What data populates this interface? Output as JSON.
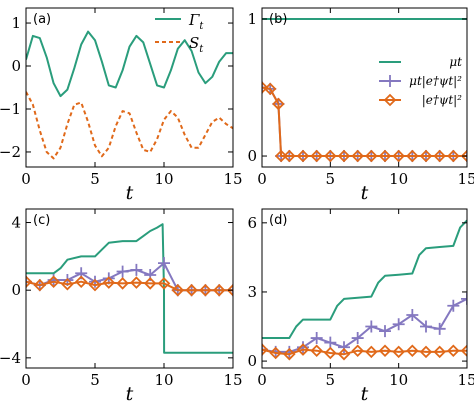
{
  "colors": {
    "green": "#2a9d7c",
    "orange": "#e0691a",
    "purple": "#8478c0"
  },
  "chart_data": [
    {
      "panel": "(a)",
      "type": "line",
      "xlabel": "t",
      "xlim": [
        0,
        15
      ],
      "ylim": [
        -2.35,
        1.35
      ],
      "xticks": [
        0,
        5,
        10,
        15
      ],
      "yticks": [
        -2,
        -1,
        0,
        1
      ],
      "legend_position": "top-right",
      "series": [
        {
          "name": "Γt",
          "color": "green",
          "style": "solid",
          "x": [
            0,
            0.5,
            1,
            1.5,
            2,
            2.5,
            3,
            3.5,
            4,
            4.5,
            5,
            5.5,
            6,
            6.5,
            7,
            7.5,
            8,
            8.5,
            9,
            9.5,
            10,
            10.5,
            11,
            11.5,
            12,
            12.5,
            13,
            13.5,
            14,
            14.5,
            15
          ],
          "y": [
            0.15,
            0.7,
            0.65,
            0.2,
            -0.4,
            -0.7,
            -0.55,
            -0.05,
            0.5,
            0.8,
            0.6,
            0.1,
            -0.45,
            -0.5,
            -0.1,
            0.45,
            0.7,
            0.55,
            0.05,
            -0.45,
            -0.5,
            -0.1,
            0.4,
            0.6,
            0.35,
            -0.15,
            -0.4,
            -0.25,
            0.1,
            0.3,
            0.3
          ]
        },
        {
          "name": "St",
          "color": "orange",
          "style": "dashed",
          "x": [
            0,
            0.5,
            1,
            1.5,
            2,
            2.5,
            3,
            3.5,
            4,
            4.5,
            5,
            5.5,
            6,
            6.5,
            7,
            7.5,
            8,
            8.5,
            9,
            9.5,
            10,
            10.5,
            11,
            11.5,
            12,
            12.5,
            13,
            13.5,
            14,
            14.5,
            15
          ],
          "y": [
            -0.6,
            -0.9,
            -1.5,
            -2.0,
            -2.15,
            -1.9,
            -1.35,
            -0.9,
            -0.85,
            -1.3,
            -1.85,
            -2.1,
            -1.9,
            -1.4,
            -1.05,
            -1.1,
            -1.55,
            -1.95,
            -2.0,
            -1.7,
            -1.25,
            -1.05,
            -1.2,
            -1.6,
            -1.9,
            -1.9,
            -1.6,
            -1.3,
            -1.2,
            -1.35,
            -1.45
          ]
        }
      ]
    },
    {
      "panel": "(b)",
      "type": "line",
      "xlabel": "t",
      "xlim": [
        0,
        15
      ],
      "ylim": [
        -0.08,
        1.08
      ],
      "xticks": [
        0,
        5,
        10,
        15
      ],
      "yticks": [
        0,
        1
      ],
      "legend_position": "right",
      "series": [
        {
          "name": "μt",
          "color": "green",
          "marker": "none",
          "x": [
            0,
            15
          ],
          "y": [
            1,
            1
          ]
        },
        {
          "name": "μt|e†ψt|²",
          "color": "purple",
          "marker": "plus",
          "x": [
            0,
            0.6,
            1.2,
            1.4,
            2,
            3,
            4,
            5,
            6,
            7,
            8,
            9,
            10,
            11,
            12,
            13,
            14,
            15
          ],
          "y": [
            0.5,
            0.49,
            0.38,
            0,
            0,
            0,
            0,
            0,
            0,
            0,
            0,
            0,
            0,
            0,
            0,
            0,
            0,
            0
          ]
        },
        {
          "name": "|e†ψt|²",
          "color": "orange",
          "marker": "diamond",
          "x": [
            0,
            0.6,
            1.2,
            1.4,
            2,
            3,
            4,
            5,
            6,
            7,
            8,
            9,
            10,
            11,
            12,
            13,
            14,
            15
          ],
          "y": [
            0.5,
            0.49,
            0.38,
            0,
            0,
            0,
            0,
            0,
            0,
            0,
            0,
            0,
            0,
            0,
            0,
            0,
            0,
            0
          ]
        }
      ]
    },
    {
      "panel": "(c)",
      "type": "line",
      "xlabel": "t",
      "xlim": [
        0,
        15
      ],
      "ylim": [
        -4.6,
        4.8
      ],
      "xticks": [
        0,
        5,
        10,
        15
      ],
      "yticks": [
        -4,
        0,
        4
      ],
      "series": [
        {
          "name": "",
          "color": "green",
          "marker": "none",
          "x": [
            0,
            2,
            2.5,
            3,
            4,
            5,
            5.5,
            6,
            7,
            8,
            8.5,
            9,
            9.5,
            9.9,
            10,
            10.01,
            15
          ],
          "y": [
            1,
            1,
            1.3,
            1.8,
            2.0,
            2.0,
            2.4,
            2.8,
            2.9,
            2.9,
            3.2,
            3.5,
            3.7,
            3.9,
            0,
            -3.7,
            -3.7
          ]
        },
        {
          "name": "",
          "color": "purple",
          "marker": "plus",
          "x": [
            0,
            1,
            2,
            3,
            4,
            5,
            6,
            7,
            8,
            9,
            10,
            11,
            12,
            13,
            14,
            15
          ],
          "y": [
            0.5,
            0.3,
            0.6,
            0.6,
            1.0,
            0.5,
            0.7,
            1.1,
            1.2,
            0.9,
            1.6,
            0,
            0,
            0,
            0,
            0
          ]
        },
        {
          "name": "",
          "color": "orange",
          "marker": "diamond",
          "x": [
            0,
            1,
            2,
            3,
            4,
            5,
            6,
            7,
            8,
            9,
            10,
            11,
            12,
            13,
            14,
            15
          ],
          "y": [
            0.5,
            0.3,
            0.5,
            0.35,
            0.5,
            0.3,
            0.45,
            0.4,
            0.45,
            0.4,
            0.4,
            0,
            0,
            0,
            0,
            0
          ]
        }
      ]
    },
    {
      "panel": "(d)",
      "type": "line",
      "xlabel": "t",
      "xlim": [
        0,
        15
      ],
      "ylim": [
        -0.3,
        6.6
      ],
      "xticks": [
        0,
        5,
        10,
        15
      ],
      "yticks": [
        0,
        3,
        6
      ],
      "series": [
        {
          "name": "",
          "color": "green",
          "marker": "none",
          "x": [
            0,
            2,
            2.5,
            3,
            4,
            5,
            5.5,
            6,
            7,
            8,
            8.5,
            9,
            10,
            11,
            11.5,
            12,
            13,
            14,
            14.5,
            15
          ],
          "y": [
            1.0,
            1.0,
            1.5,
            1.8,
            1.8,
            1.8,
            2.4,
            2.7,
            2.75,
            2.8,
            3.4,
            3.7,
            3.75,
            3.8,
            4.6,
            4.9,
            4.95,
            5.0,
            5.8,
            6.1
          ]
        },
        {
          "name": "",
          "color": "purple",
          "marker": "plus",
          "x": [
            0,
            1,
            2,
            3,
            4,
            5,
            6,
            7,
            8,
            9,
            10,
            11,
            12,
            13,
            14,
            15
          ],
          "y": [
            0.5,
            0.4,
            0.4,
            0.6,
            1.0,
            0.8,
            0.6,
            1.0,
            1.5,
            1.3,
            1.6,
            2.0,
            1.5,
            1.4,
            2.4,
            2.7
          ]
        },
        {
          "name": "",
          "color": "orange",
          "marker": "diamond",
          "x": [
            0,
            1,
            2,
            3,
            4,
            5,
            6,
            7,
            8,
            9,
            10,
            11,
            12,
            13,
            14,
            15
          ],
          "y": [
            0.5,
            0.35,
            0.3,
            0.5,
            0.45,
            0.35,
            0.3,
            0.45,
            0.4,
            0.45,
            0.4,
            0.45,
            0.4,
            0.4,
            0.45,
            0.45
          ]
        }
      ]
    }
  ]
}
